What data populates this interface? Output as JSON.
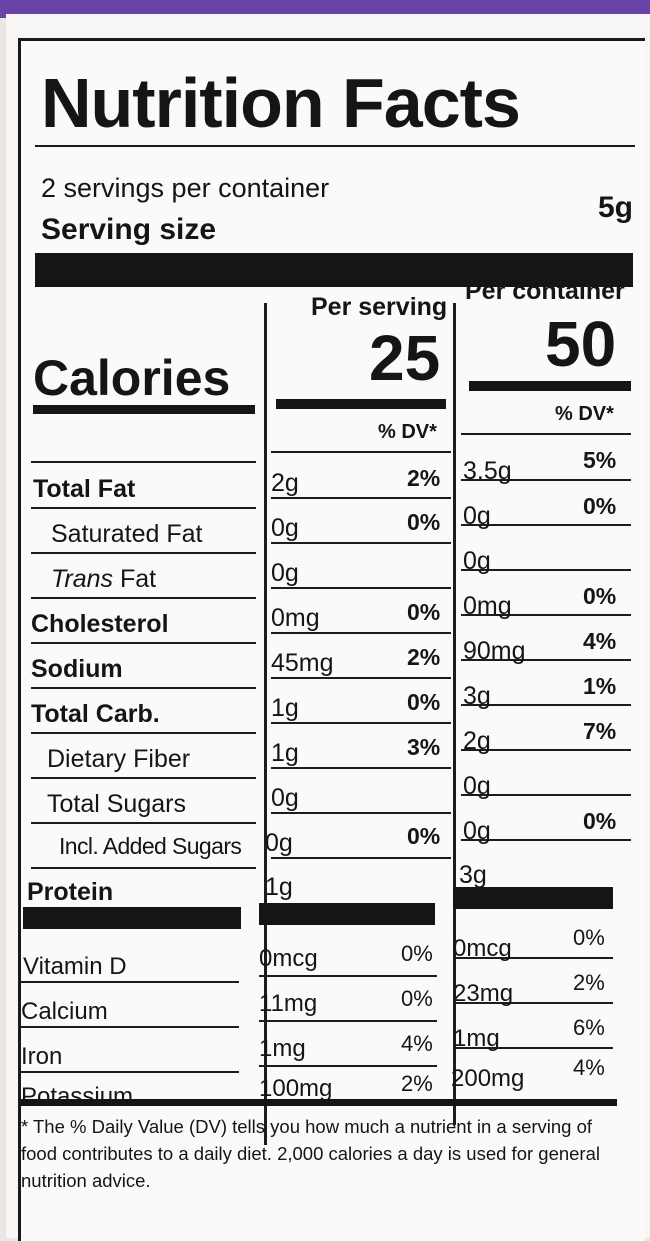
{
  "title": "Nutrition Facts",
  "servings_per_container": "2 servings per container",
  "serving_size_label": "Serving size",
  "serving_size_value": "5g",
  "calories_label": "Calories",
  "col_headers": {
    "per_serving": "Per serving",
    "per_container": "Per container"
  },
  "calories": {
    "per_serving": "25",
    "per_container": "50"
  },
  "dv_header": "% DV*",
  "nutrients": [
    {
      "name": "Total Fat",
      "serv_amt": "2g",
      "serv_dv": "2%",
      "cont_amt": "3.5g",
      "cont_dv": "5%"
    },
    {
      "name": "Saturated Fat",
      "serv_amt": "0g",
      "serv_dv": "0%",
      "cont_amt": "0g",
      "cont_dv": "0%"
    },
    {
      "name_italic": "Trans",
      "name_rest": " Fat",
      "serv_amt": "0g",
      "serv_dv": "",
      "cont_amt": "0g",
      "cont_dv": ""
    },
    {
      "name": "Cholesterol",
      "serv_amt": "0mg",
      "serv_dv": "0%",
      "cont_amt": "0mg",
      "cont_dv": "0%"
    },
    {
      "name": "Sodium",
      "serv_amt": "45mg",
      "serv_dv": "2%",
      "cont_amt": "90mg",
      "cont_dv": "4%"
    },
    {
      "name": "Total Carb.",
      "serv_amt": "1g",
      "serv_dv": "0%",
      "cont_amt": "3g",
      "cont_dv": "1%"
    },
    {
      "name": "Dietary Fiber",
      "serv_amt": "1g",
      "serv_dv": "3%",
      "cont_amt": "2g",
      "cont_dv": "7%"
    },
    {
      "name": "Total Sugars",
      "serv_amt": "0g",
      "serv_dv": "",
      "cont_amt": "0g",
      "cont_dv": ""
    },
    {
      "name": "Incl. Added Sugars",
      "serv_amt": "0g",
      "serv_dv": "0%",
      "cont_amt": "0g",
      "cont_dv": "0%"
    },
    {
      "name": "Protein",
      "serv_amt": "1g",
      "serv_dv": "",
      "cont_amt": "3g",
      "cont_dv": ""
    }
  ],
  "vitamins": [
    {
      "name": "Vitamin D",
      "serv_amt": "0mcg",
      "serv_dv": "0%",
      "cont_amt": "0mcg",
      "cont_dv": "0%"
    },
    {
      "name": "Calcium",
      "serv_amt": "11mg",
      "serv_dv": "0%",
      "cont_amt": "23mg",
      "cont_dv": "2%"
    },
    {
      "name": "Iron",
      "serv_amt": "1mg",
      "serv_dv": "4%",
      "cont_amt": "1mg",
      "cont_dv": "6%"
    },
    {
      "name": "Potassium",
      "serv_amt": "100mg",
      "serv_dv": "2%",
      "cont_amt": "200mg",
      "cont_dv": "4%"
    }
  ],
  "footnote": "* The % Daily Value (DV) tells you how much a nutrient in a serving of food contributes to a daily diet. 2,000 calories a day is used for general nutrition advice."
}
